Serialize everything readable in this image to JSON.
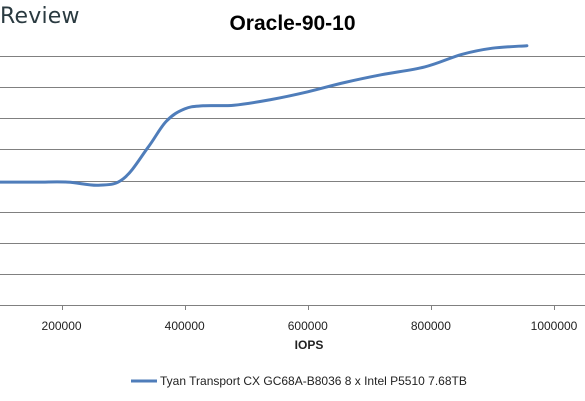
{
  "brand": {
    "text": "Review"
  },
  "chart_data": {
    "type": "line",
    "title": "Oracle-90-10",
    "xlabel": "IOPS",
    "ylabel": "",
    "x_ticks": [
      200000,
      400000,
      600000,
      800000,
      1000000
    ],
    "x_tick_labels": [
      "200000",
      "400000",
      "600000",
      "800000",
      "1000000"
    ],
    "xlim": [
      100000,
      1000000
    ],
    "ylim": [
      0,
      8
    ],
    "y_gridlines": [
      1,
      2,
      3,
      4,
      5,
      6,
      7,
      8
    ],
    "grid": true,
    "legend": "bottom",
    "colors": {
      "series": "#4f7dba",
      "grid": "#808080"
    },
    "series": [
      {
        "name": "Tyan Transport CX GC68A-B8036 8 x Intel P5510 7.68TB",
        "x": [
          100000,
          160000,
          210000,
          260000,
          300000,
          340000,
          370000,
          400000,
          430000,
          480000,
          540000,
          600000,
          660000,
          720000,
          790000,
          850000,
          900000,
          956000
        ],
        "y": [
          3.95,
          3.95,
          3.95,
          3.85,
          4.05,
          5.05,
          5.9,
          6.3,
          6.4,
          6.42,
          6.6,
          6.85,
          7.15,
          7.4,
          7.65,
          8.05,
          8.25,
          8.33
        ]
      }
    ]
  }
}
